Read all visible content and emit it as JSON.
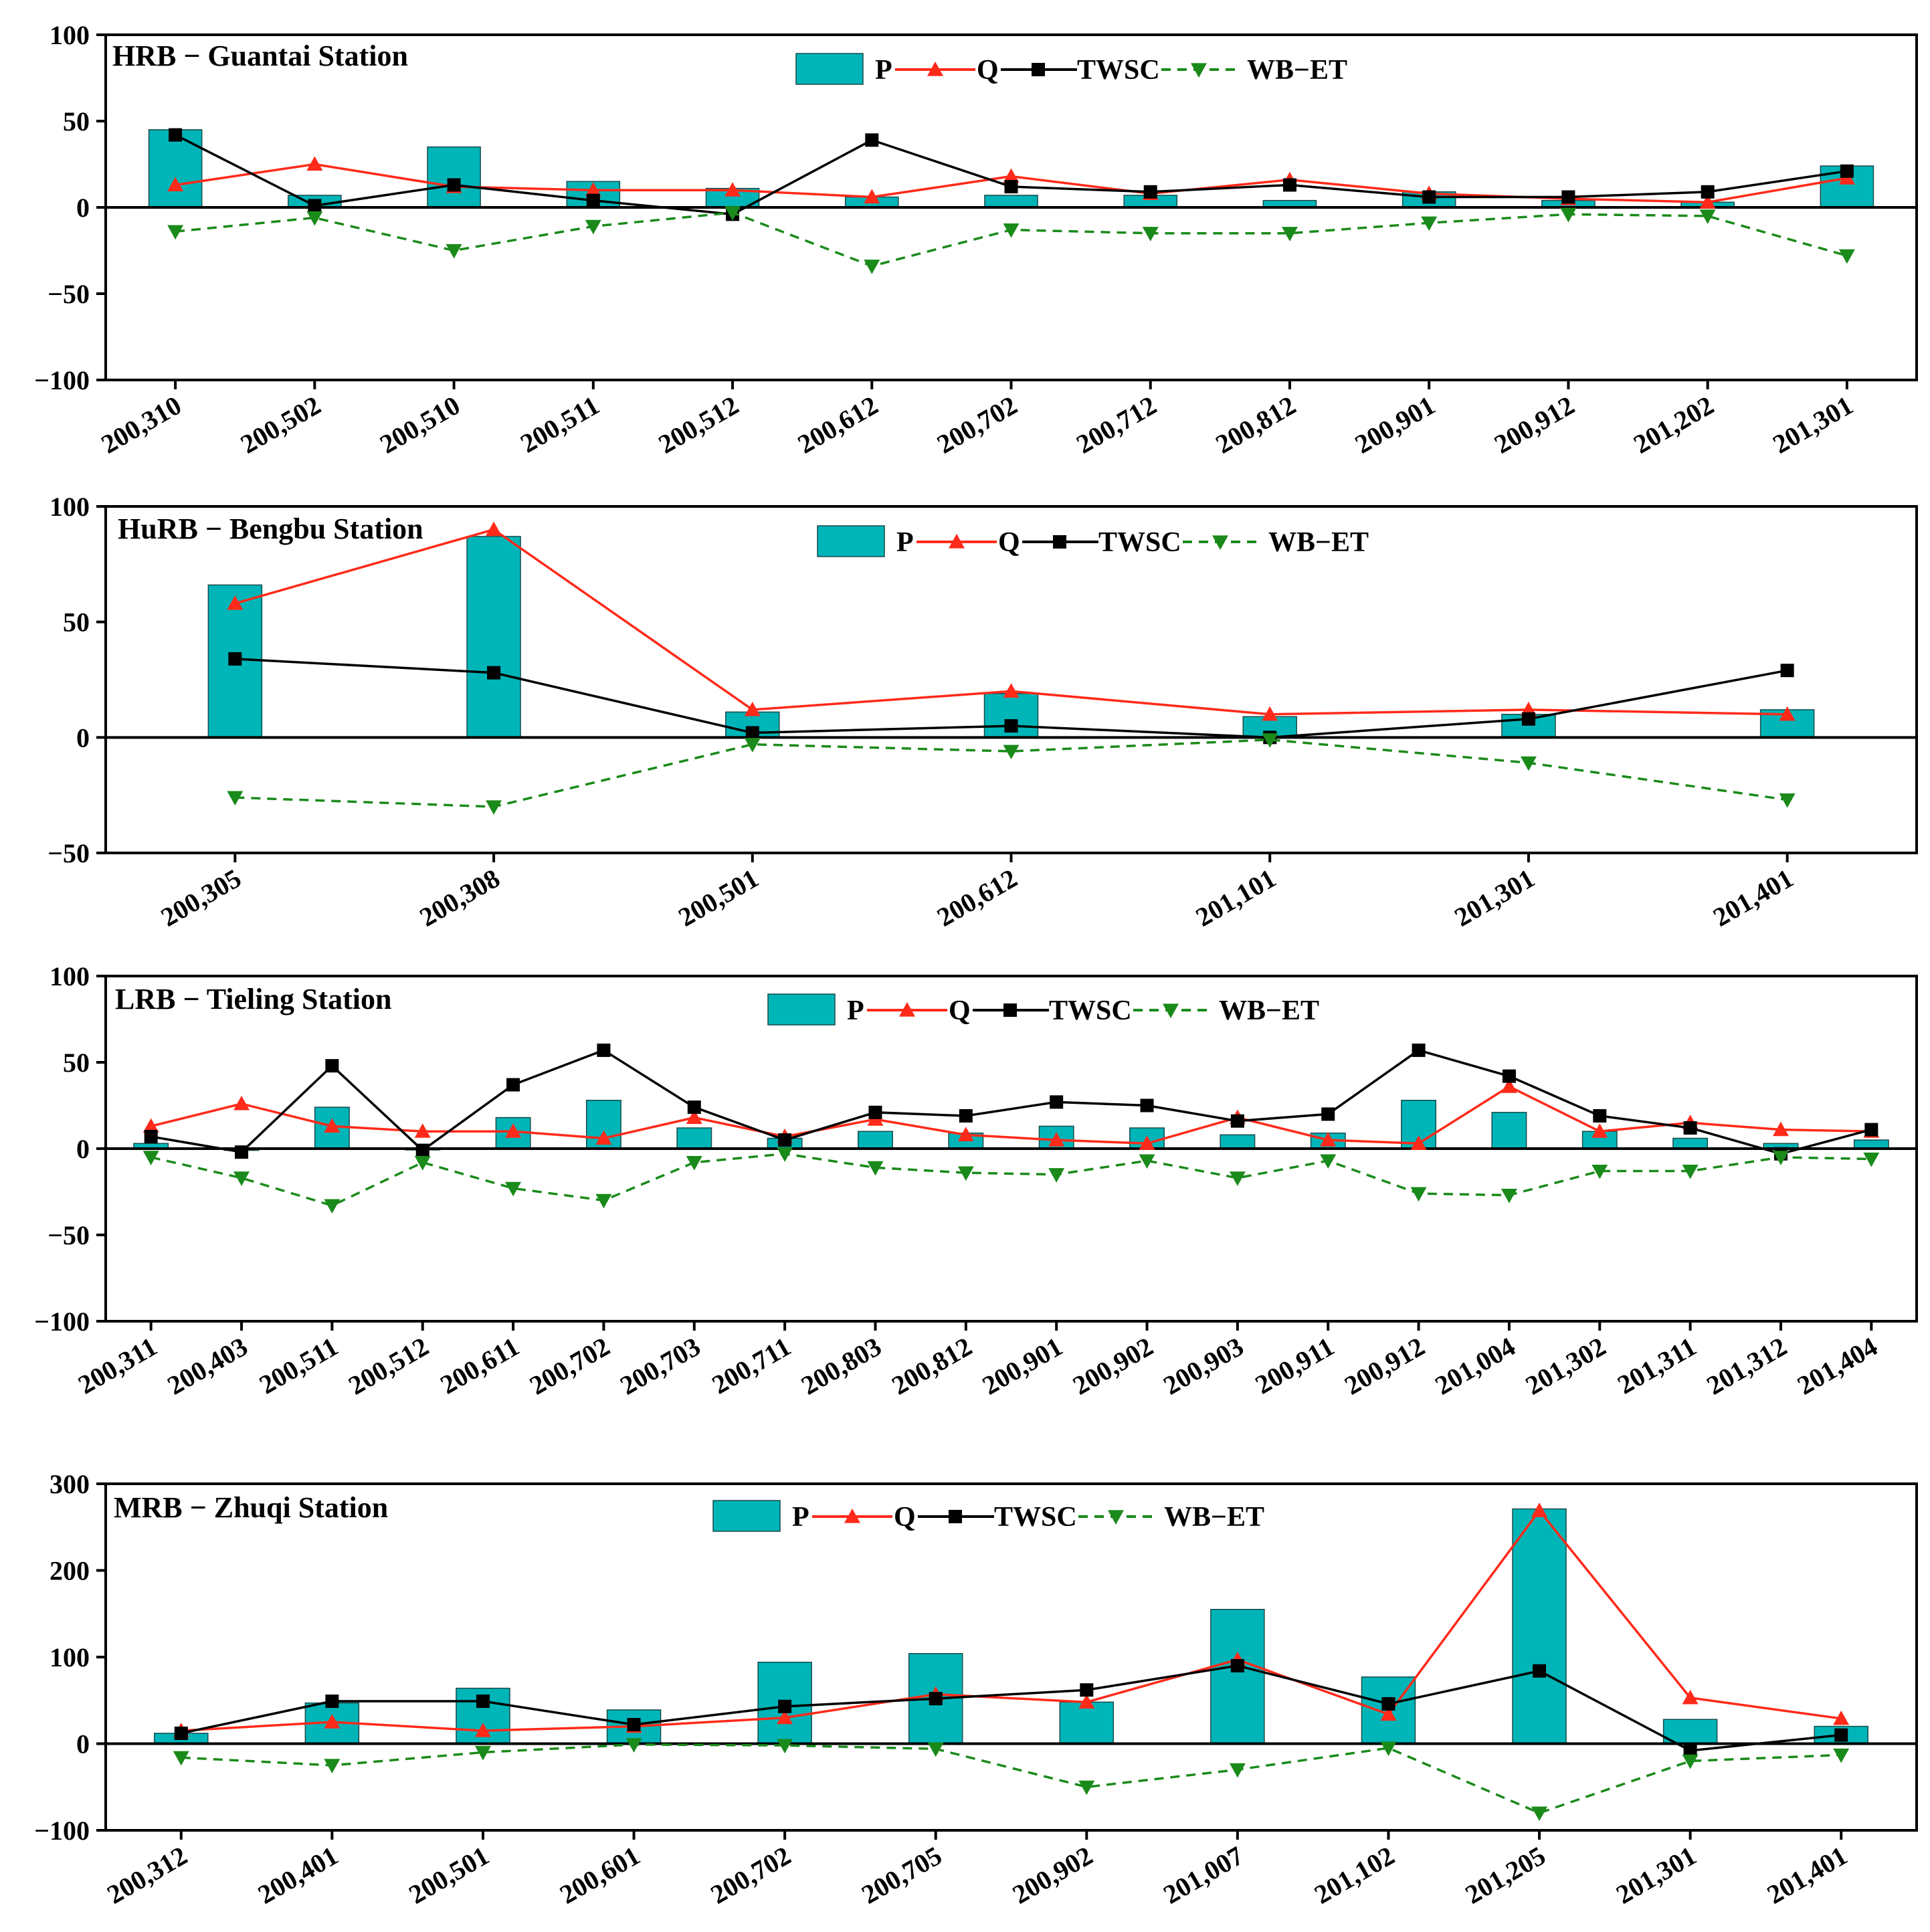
{
  "colors": {
    "p_bar": "#00b5b8",
    "q_line": "#ff2a1a",
    "twsc_line": "#000000",
    "wbet_line": "#1a8a1a"
  },
  "legend_labels": {
    "p": "P",
    "q": "Q",
    "twsc": "TWSC",
    "wbet": "WB−ET"
  },
  "chart_data": [
    {
      "type": "bar+line",
      "title": "HRB − Guantai Station",
      "categories": [
        "200,310",
        "200,502",
        "200,510",
        "200,511",
        "200,512",
        "200,612",
        "200,702",
        "200,712",
        "200,812",
        "200,901",
        "200,912",
        "201,202",
        "201,301"
      ],
      "ylim": [
        -100,
        100
      ],
      "yticks": [
        -100,
        -50,
        0,
        50,
        100
      ],
      "ytick_labels": [
        "−100",
        "−50",
        "0",
        "50",
        "100"
      ],
      "series": [
        {
          "name": "P",
          "kind": "bar",
          "values": [
            45,
            7,
            35,
            15,
            11,
            6,
            7,
            7,
            4,
            9,
            4,
            3,
            24
          ]
        },
        {
          "name": "Q",
          "kind": "line",
          "values": [
            13,
            25,
            12,
            10,
            10,
            6,
            18,
            8,
            16,
            8,
            5,
            3,
            17
          ]
        },
        {
          "name": "TWSC",
          "kind": "line",
          "values": [
            42,
            1,
            13,
            4,
            -4,
            39,
            12,
            9,
            13,
            6,
            6,
            9,
            21
          ]
        },
        {
          "name": "WB−ET",
          "kind": "line",
          "values": [
            -14,
            -6,
            -25,
            -11,
            -3,
            -34,
            -13,
            -15,
            -15,
            -9,
            -4,
            -5,
            -28
          ]
        }
      ]
    },
    {
      "type": "bar+line",
      "title": "HuRB − Bengbu Station",
      "categories": [
        "200,305",
        "200,308",
        "200,501",
        "200,612",
        "201,101",
        "201,301",
        "201,401"
      ],
      "ylim": [
        -50,
        100
      ],
      "yticks": [
        -50,
        0,
        50,
        100
      ],
      "ytick_labels": [
        "−50",
        "0",
        "50",
        "100"
      ],
      "series": [
        {
          "name": "P",
          "kind": "bar",
          "values": [
            66,
            87,
            11,
            19,
            9,
            10,
            12
          ]
        },
        {
          "name": "Q",
          "kind": "line",
          "values": [
            58,
            90,
            12,
            20,
            10,
            12,
            10
          ]
        },
        {
          "name": "TWSC",
          "kind": "line",
          "values": [
            34,
            28,
            2,
            5,
            0,
            8,
            29
          ]
        },
        {
          "name": "WB−ET",
          "kind": "line",
          "values": [
            -26,
            -30,
            -3,
            -6,
            -1,
            -11,
            -27
          ]
        }
      ]
    },
    {
      "type": "bar+line",
      "title": "LRB − Tieling Station",
      "categories": [
        "200,311",
        "200,403",
        "200,511",
        "200,512",
        "200,611",
        "200,702",
        "200,703",
        "200,711",
        "200,803",
        "200,812",
        "200,901",
        "200,902",
        "200,903",
        "200,911",
        "200,912",
        "201,004",
        "201,302",
        "201,311",
        "201,312",
        "201,404"
      ],
      "ylim": [
        -100,
        100
      ],
      "yticks": [
        -100,
        -50,
        0,
        50,
        100
      ],
      "ytick_labels": [
        "−100",
        "−50",
        "0",
        "50",
        "100"
      ],
      "series": [
        {
          "name": "P",
          "kind": "bar",
          "values": [
            3,
            -1,
            24,
            0,
            18,
            28,
            12,
            6,
            10,
            9,
            13,
            12,
            8,
            9,
            28,
            21,
            10,
            6,
            3,
            5
          ]
        },
        {
          "name": "Q",
          "kind": "line",
          "values": [
            13,
            26,
            13,
            10,
            10,
            6,
            18,
            7,
            17,
            8,
            5,
            3,
            18,
            5,
            3,
            36,
            10,
            15,
            11,
            10
          ]
        },
        {
          "name": "TWSC",
          "kind": "line",
          "values": [
            7,
            -2,
            48,
            -1,
            37,
            57,
            24,
            5,
            21,
            19,
            27,
            25,
            16,
            20,
            57,
            42,
            19,
            12,
            -3,
            11
          ]
        },
        {
          "name": "WB−ET",
          "kind": "line",
          "values": [
            -5,
            -17,
            -33,
            -8,
            -23,
            -30,
            -8,
            -3,
            -11,
            -14,
            -15,
            -7,
            -17,
            -7,
            -26,
            -27,
            -13,
            -13,
            -5,
            -6
          ]
        }
      ]
    },
    {
      "type": "bar+line",
      "title": "MRB − Zhuqi Station",
      "categories": [
        "200,312",
        "200,401",
        "200,501",
        "200,601",
        "200,702",
        "200,705",
        "200,902",
        "201,007",
        "201,102",
        "201,205",
        "201,301",
        "201,401"
      ],
      "ylim": [
        -100,
        300
      ],
      "yticks": [
        -100,
        0,
        100,
        200,
        300
      ],
      "ytick_labels": [
        "−100",
        "0",
        "100",
        "200",
        "300"
      ],
      "series": [
        {
          "name": "P",
          "kind": "bar",
          "values": [
            12,
            47,
            64,
            39,
            94,
            104,
            48,
            155,
            77,
            271,
            28,
            20
          ]
        },
        {
          "name": "Q",
          "kind": "line",
          "values": [
            15,
            25,
            15,
            20,
            30,
            57,
            48,
            97,
            34,
            269,
            53,
            29
          ]
        },
        {
          "name": "TWSC",
          "kind": "line",
          "values": [
            12,
            49,
            49,
            22,
            43,
            52,
            62,
            90,
            46,
            84,
            -8,
            10
          ]
        },
        {
          "name": "WB−ET",
          "kind": "line",
          "values": [
            -16,
            -25,
            -10,
            -1,
            -2,
            -6,
            -50,
            -30,
            -5,
            -80,
            -20,
            -13
          ]
        }
      ]
    }
  ]
}
